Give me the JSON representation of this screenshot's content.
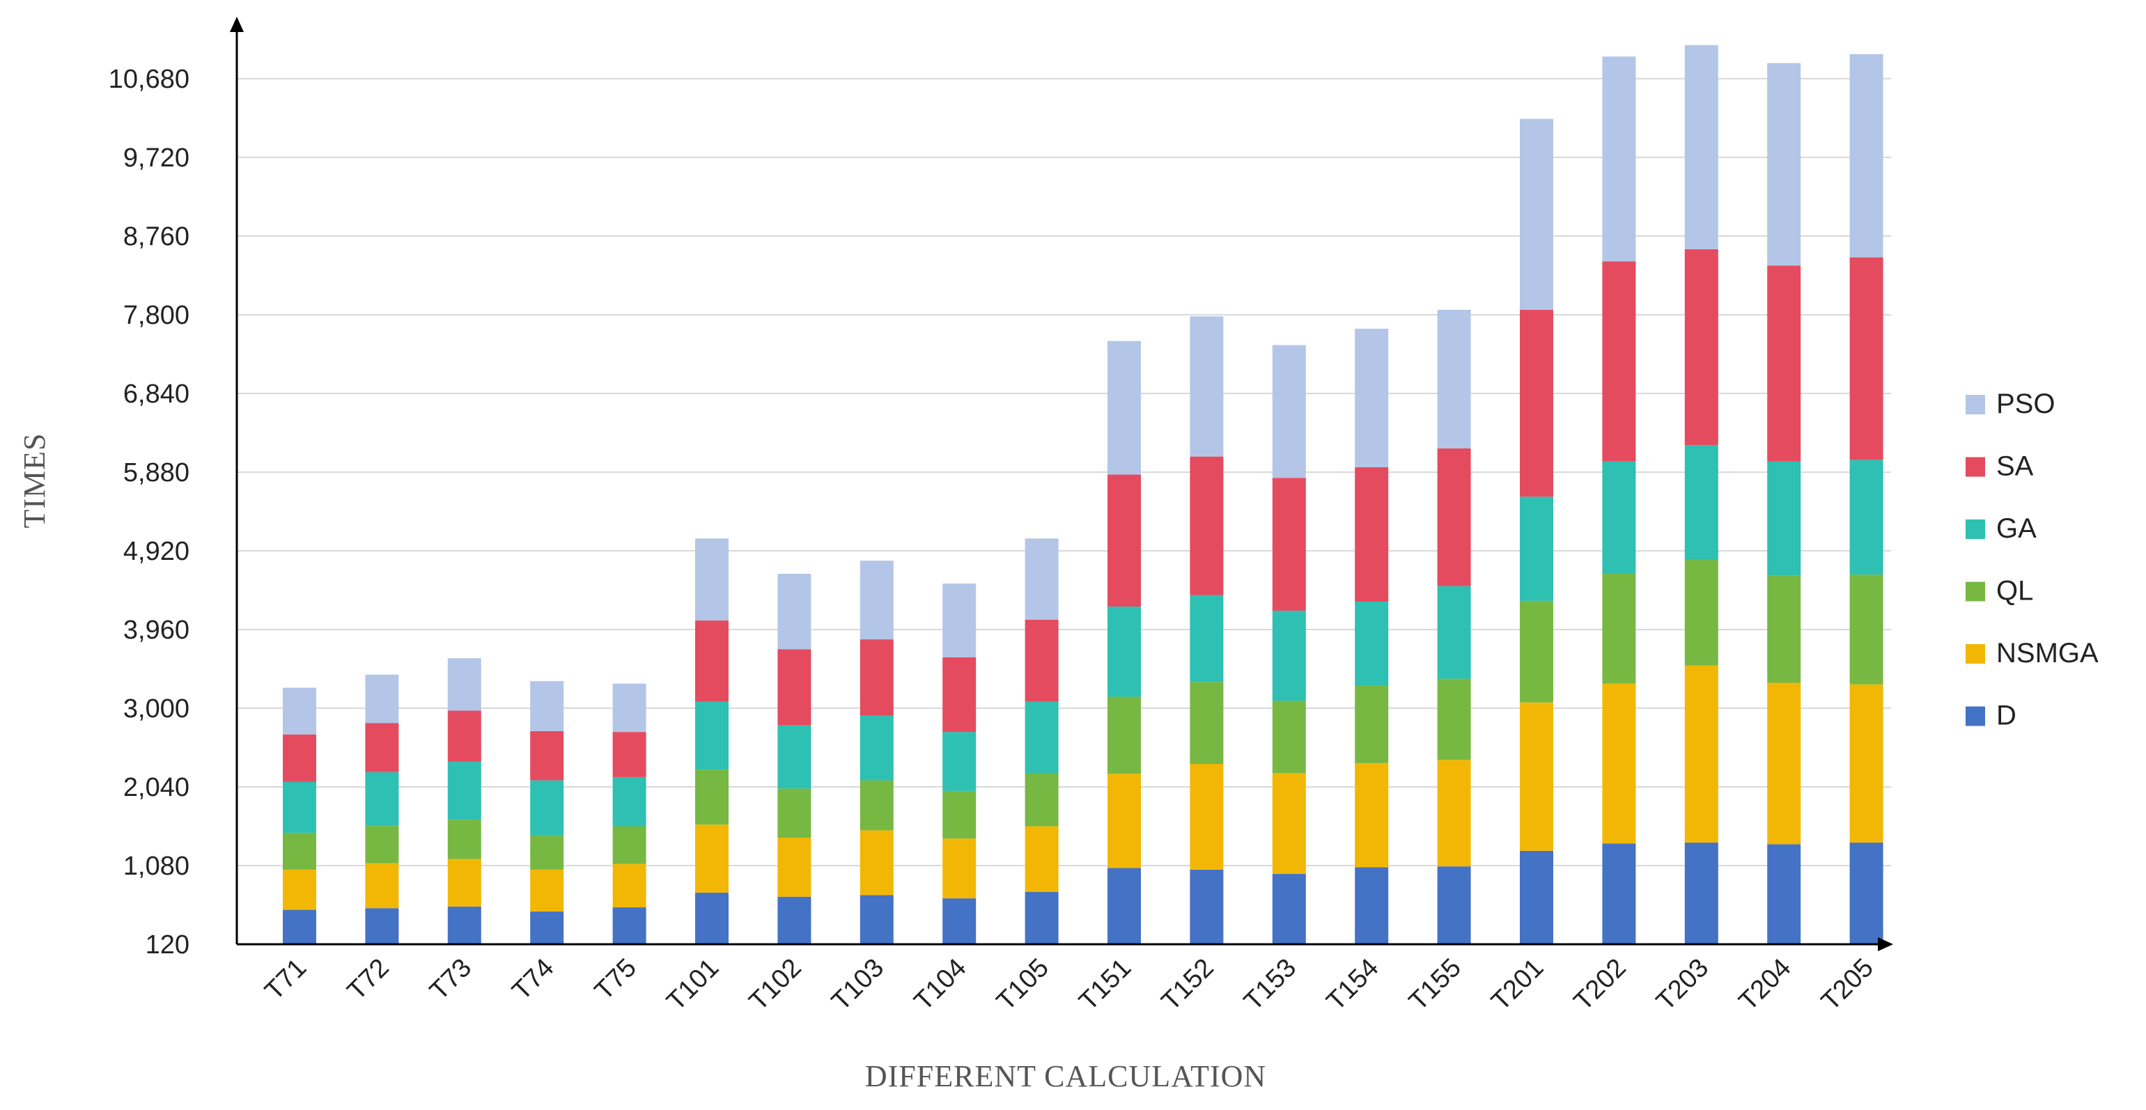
{
  "chart_data": {
    "type": "bar",
    "stacked": true,
    "xlabel": "DIFFERENT CALCULATION",
    "ylabel": "TIMES",
    "ylim": [
      120,
      11200
    ],
    "yticks": [
      120,
      1080,
      2040,
      3000,
      3960,
      4920,
      5880,
      6840,
      7800,
      8760,
      9720,
      10680
    ],
    "ytick_labels": [
      "120",
      "1,080",
      "2,040",
      "3,000",
      "3,960",
      "4,920",
      "5,880",
      "6,840",
      "7,800",
      "8,760",
      "9,720",
      "10,680"
    ],
    "grid": true,
    "legend_position": "right",
    "categories": [
      "T71",
      "T72",
      "T73",
      "T74",
      "T75",
      "T101",
      "T102",
      "T103",
      "T104",
      "T105",
      "T151",
      "T152",
      "T153",
      "T154",
      "T155",
      "T201",
      "T202",
      "T203",
      "T204",
      "T205"
    ],
    "series": [
      {
        "name": "D",
        "color": "#4472c4",
        "values": [
          420,
          440,
          460,
          400,
          450,
          630,
          580,
          600,
          560,
          640,
          930,
          910,
          860,
          940,
          950,
          1140,
          1230,
          1240,
          1220,
          1240
        ]
      },
      {
        "name": "NSMGA",
        "color": "#f2b705",
        "values": [
          490,
          550,
          580,
          510,
          530,
          830,
          720,
          790,
          730,
          800,
          1150,
          1290,
          1230,
          1270,
          1300,
          1810,
          1950,
          2160,
          1970,
          1930
        ]
      },
      {
        "name": "QL",
        "color": "#77b843",
        "values": [
          450,
          460,
          480,
          420,
          460,
          670,
          600,
          610,
          580,
          650,
          940,
          1000,
          880,
          950,
          990,
          1240,
          1340,
          1290,
          1310,
          1340
        ]
      },
      {
        "name": "GA",
        "color": "#2ec0b3",
        "values": [
          620,
          650,
          710,
          670,
          600,
          830,
          770,
          790,
          720,
          870,
          1100,
          1060,
          1100,
          1020,
          1130,
          1270,
          1370,
          1400,
          1390,
          1400
        ]
      },
      {
        "name": "SA",
        "color": "#e44b5f",
        "values": [
          580,
          600,
          620,
          600,
          550,
          990,
          930,
          930,
          910,
          1000,
          1610,
          1690,
          1620,
          1640,
          1680,
          2280,
          2440,
          2390,
          2390,
          2470
        ]
      },
      {
        "name": "PSO",
        "color": "#b4c6e7",
        "values": [
          570,
          590,
          640,
          610,
          590,
          1000,
          920,
          960,
          900,
          990,
          1630,
          1710,
          1620,
          1690,
          1690,
          2330,
          2500,
          2490,
          2470,
          2480
        ]
      }
    ]
  }
}
